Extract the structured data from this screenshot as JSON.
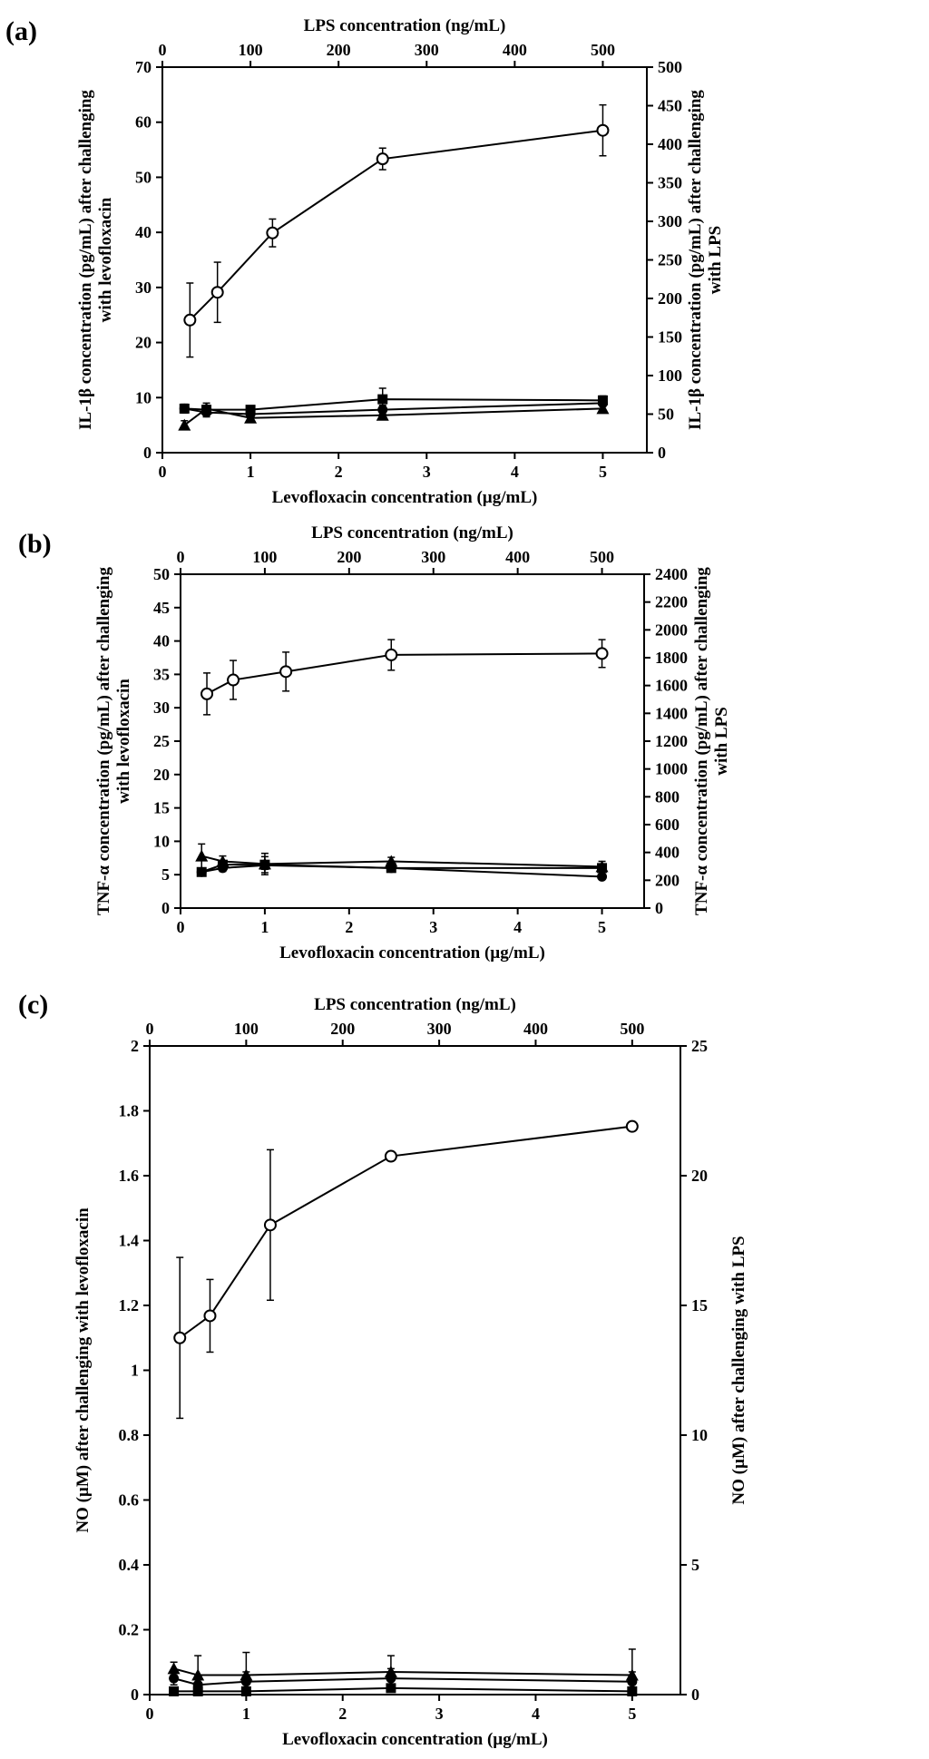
{
  "chart_data": [
    {
      "panel_label": "(a)",
      "type": "line",
      "top_axis": {
        "label": "LPS concentration (ng/mL)",
        "range": [
          0,
          550
        ],
        "ticks": [
          0,
          100,
          200,
          300,
          400,
          500
        ]
      },
      "bottom_axis": {
        "label": "Levofloxacin concentration (µg/mL)",
        "range": [
          0,
          5.5
        ],
        "ticks": [
          0,
          1,
          2,
          3,
          4,
          5
        ]
      },
      "left_axis": {
        "label": "IL-1β concentration (pg/mL) after challenging with levofloxacin",
        "label_lines": [
          "IL-1β concentration (pg/mL) after challenging",
          "with levofloxacin"
        ],
        "range": [
          0,
          70
        ],
        "ticks": [
          0,
          10,
          20,
          30,
          40,
          50,
          60,
          70
        ]
      },
      "right_axis": {
        "label": "IL-1β concentration (pg/mL) after challenging with LPS",
        "label_lines": [
          "IL-1β concentration (pg/mL) after challenging",
          "with LPS"
        ],
        "range": [
          0,
          500
        ],
        "ticks": [
          0,
          50,
          100,
          150,
          200,
          250,
          300,
          350,
          400,
          450,
          500
        ]
      },
      "series": [
        {
          "name": "LPS",
          "marker": "open-circle",
          "x_axis": "top",
          "y_axis": "right",
          "x": [
            31.25,
            62.5,
            125,
            250,
            500
          ],
          "y": [
            172,
            208,
            285,
            381,
            418
          ],
          "err": [
            48,
            39,
            18,
            14,
            33
          ]
        },
        {
          "name": "Levofloxacin (square)",
          "marker": "square",
          "x_axis": "bottom",
          "y_axis": "left",
          "x": [
            0.25,
            0.5,
            1,
            2.5,
            5
          ],
          "y": [
            8.0,
            7.8,
            7.8,
            9.7,
            9.5
          ],
          "err": [
            0.8,
            0.8,
            0.7,
            2.0,
            0.8
          ]
        },
        {
          "name": "Levofloxacin (triangle)",
          "marker": "triangle",
          "x_axis": "bottom",
          "y_axis": "left",
          "x": [
            0.25,
            0.5,
            1,
            2.5,
            5
          ],
          "y": [
            5.0,
            8.0,
            6.3,
            6.8,
            8.0
          ],
          "err": [
            0.8,
            1.0,
            0.6,
            0.8,
            0.8
          ]
        },
        {
          "name": "Levofloxacin (circle)",
          "marker": "circle",
          "x_axis": "bottom",
          "y_axis": "left",
          "x": [
            0.25,
            0.5,
            1,
            2.5,
            5
          ],
          "y": [
            8.0,
            7.3,
            7.0,
            7.8,
            9.0
          ],
          "err": [
            0.6,
            0.8,
            0.6,
            0.8,
            0.6
          ]
        }
      ]
    },
    {
      "panel_label": "(b)",
      "type": "line",
      "top_axis": {
        "label": "LPS concentration (ng/mL)",
        "range": [
          0,
          550
        ],
        "ticks": [
          0,
          100,
          200,
          300,
          400,
          500
        ]
      },
      "bottom_axis": {
        "label": "Levofloxacin concentration (µg/mL)",
        "range": [
          0,
          5.5
        ],
        "ticks": [
          0,
          1,
          2,
          3,
          4,
          5
        ]
      },
      "left_axis": {
        "label": "TNF-α concentration (pg/mL) after challenging with levofloxacin",
        "label_lines": [
          "TNF-α concentration (pg/mL) after challenging",
          "with levofloxacin"
        ],
        "range": [
          0,
          50
        ],
        "ticks": [
          0,
          5,
          10,
          15,
          20,
          25,
          30,
          35,
          40,
          45,
          50
        ]
      },
      "right_axis": {
        "label": "TNF-α concentration (pg/mL) after challenging with LPS",
        "label_lines": [
          "TNF-α concentration (pg/mL) after challenging",
          "with LPS"
        ],
        "range": [
          0,
          2400
        ],
        "ticks": [
          0,
          200,
          400,
          600,
          800,
          1000,
          1200,
          1400,
          1600,
          1800,
          2000,
          2200,
          2400
        ]
      },
      "series": [
        {
          "name": "LPS",
          "marker": "open-circle",
          "x_axis": "top",
          "y_axis": "right",
          "x": [
            31.25,
            62.5,
            125,
            250,
            500
          ],
          "y": [
            1540,
            1640,
            1700,
            1820,
            1830
          ],
          "err": [
            150,
            140,
            140,
            110,
            100
          ]
        },
        {
          "name": "Levofloxacin (triangle)",
          "marker": "triangle",
          "x_axis": "bottom",
          "y_axis": "left",
          "x": [
            0.25,
            0.5,
            1,
            2.5,
            5
          ],
          "y": [
            7.8,
            7.0,
            6.6,
            7.0,
            6.2
          ],
          "err": [
            1.8,
            0.8,
            1.6,
            0.6,
            0.8
          ]
        },
        {
          "name": "Levofloxacin (square)",
          "marker": "square",
          "x_axis": "bottom",
          "y_axis": "left",
          "x": [
            0.25,
            0.5,
            1,
            2.5,
            5
          ],
          "y": [
            5.4,
            6.5,
            6.5,
            6.0,
            6.0
          ],
          "err": [
            0.4,
            0.6,
            1.2,
            0.5,
            0.6
          ]
        },
        {
          "name": "Levofloxacin (circle)",
          "marker": "circle",
          "x_axis": "bottom",
          "y_axis": "left",
          "x": [
            0.25,
            0.5,
            1,
            2.5,
            5
          ],
          "y": [
            5.4,
            6.0,
            6.4,
            6.0,
            4.7
          ],
          "err": [
            0.4,
            0.5,
            0.6,
            0.5,
            0.4
          ]
        }
      ]
    },
    {
      "panel_label": "(c)",
      "type": "line",
      "top_axis": {
        "label": "LPS concentration (ng/mL)",
        "range": [
          0,
          550
        ],
        "ticks": [
          0,
          100,
          200,
          300,
          400,
          500
        ]
      },
      "bottom_axis": {
        "label": "Levofloxacin concentration (µg/mL)",
        "range": [
          0,
          5.5
        ],
        "ticks": [
          0,
          1,
          2,
          3,
          4,
          5
        ]
      },
      "left_axis": {
        "label": "NO (µM) after challenging with levofloxacin",
        "label_lines": [
          "NO (µM) after challenging with levofloxacin"
        ],
        "range": [
          0,
          2
        ],
        "ticks": [
          0,
          0.2,
          0.4,
          0.6,
          0.8,
          1,
          1.2,
          1.4,
          1.6,
          1.8,
          2
        ]
      },
      "right_axis": {
        "label": "NO (µM) after challenging with LPS",
        "label_lines": [
          "NO (µM) after challenging with LPS"
        ],
        "range": [
          0,
          25
        ],
        "ticks": [
          0,
          5,
          10,
          15,
          20,
          25
        ]
      },
      "series": [
        {
          "name": "LPS",
          "marker": "open-circle",
          "x_axis": "top",
          "y_axis": "right",
          "x": [
            31.25,
            62.5,
            125,
            250,
            500
          ],
          "y": [
            13.75,
            14.6,
            18.1,
            20.75,
            21.9
          ],
          "err": [
            3.1,
            1.4,
            2.9,
            0.1,
            0.1
          ]
        },
        {
          "name": "Levofloxacin (triangle)",
          "marker": "triangle",
          "x_axis": "bottom",
          "y_axis": "left",
          "x": [
            0.25,
            0.5,
            1,
            2.5,
            5
          ],
          "y": [
            0.08,
            0.06,
            0.06,
            0.07,
            0.06
          ],
          "err": [
            0.02,
            0.06,
            0.07,
            0.05,
            0.08
          ]
        },
        {
          "name": "Levofloxacin (circle)",
          "marker": "circle",
          "x_axis": "bottom",
          "y_axis": "left",
          "x": [
            0.25,
            0.5,
            1,
            2.5,
            5
          ],
          "y": [
            0.05,
            0.03,
            0.04,
            0.05,
            0.04
          ],
          "err": [
            0.02,
            0.03,
            0.03,
            0.03,
            0.03
          ]
        },
        {
          "name": "Levofloxacin (square)",
          "marker": "square",
          "x_axis": "bottom",
          "y_axis": "left",
          "x": [
            0.25,
            0.5,
            1,
            2.5,
            5
          ],
          "y": [
            0.01,
            0.01,
            0.01,
            0.02,
            0.01
          ],
          "err": [
            0.01,
            0.01,
            0.01,
            0.01,
            0.01
          ]
        }
      ]
    }
  ]
}
